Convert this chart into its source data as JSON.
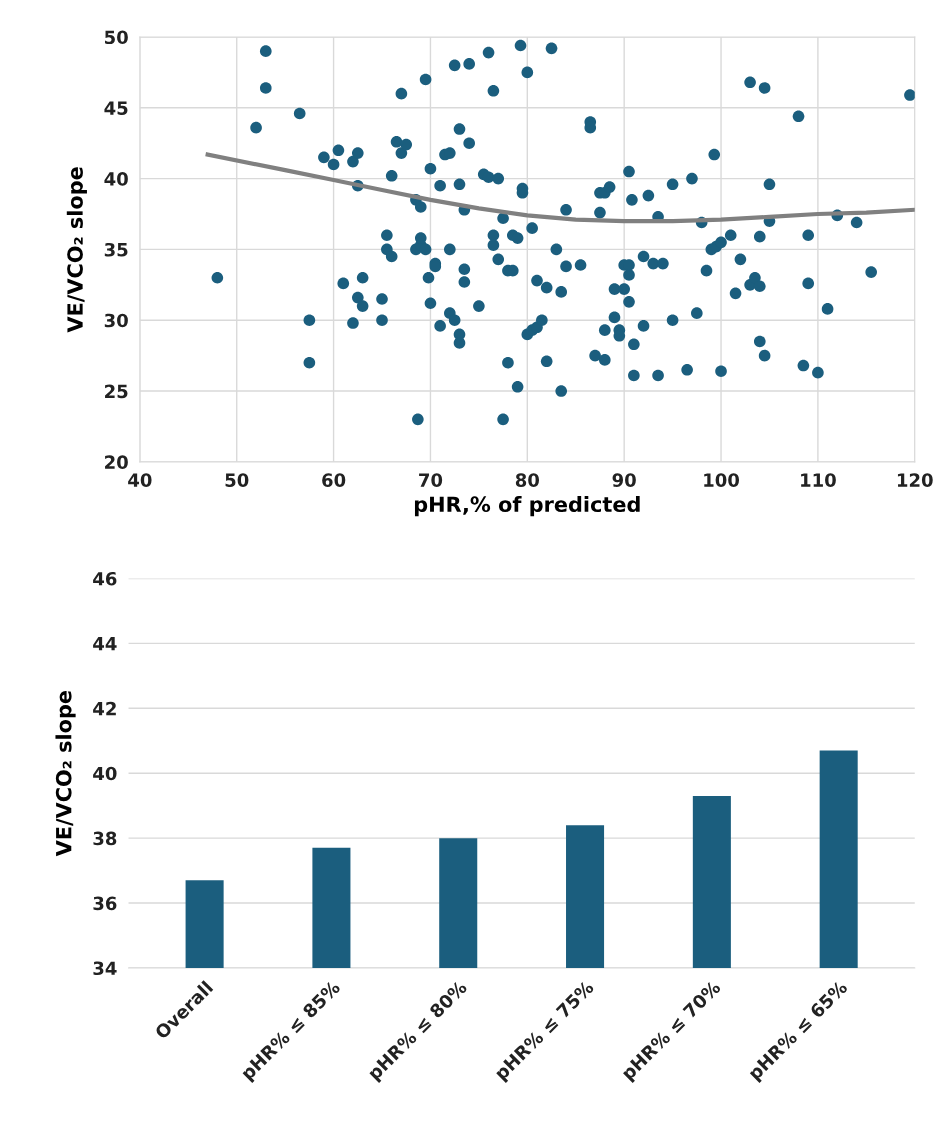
{
  "chart_data": [
    {
      "type": "scatter",
      "xlabel": "pHR,% of predicted",
      "ylabel": "VE/VCO₂ slope",
      "xlim": [
        40,
        120
      ],
      "xticks": [
        40,
        50,
        60,
        70,
        80,
        90,
        100,
        110,
        120
      ],
      "ylim": [
        20,
        50
      ],
      "yticks": [
        20,
        25,
        30,
        35,
        40,
        45,
        50
      ],
      "grid": true,
      "series": [
        {
          "type": "scatter",
          "marker": "circle",
          "color": "#1b5e7e",
          "x": [
            48,
            52,
            53,
            53,
            56.5,
            57.5,
            57.5,
            59,
            60,
            60.5,
            61,
            62,
            62,
            62.5,
            62.5,
            62.5,
            63,
            63,
            65,
            65,
            65.5,
            65.5,
            66,
            66,
            66.5,
            67,
            67.5,
            67,
            68.5,
            68.5,
            69,
            69,
            69,
            68.7,
            69.5,
            69.5,
            69.8,
            70,
            70,
            70.5,
            70.5,
            71,
            71,
            71.5,
            72,
            72,
            72,
            72.5,
            72.5,
            73,
            73,
            73,
            73,
            73.5,
            73.5,
            73.5,
            74,
            74,
            75,
            75.5,
            76,
            76,
            76.5,
            76.5,
            76.5,
            77,
            77,
            77.5,
            77.5,
            78,
            78,
            78.5,
            78.5,
            79,
            79,
            79.3,
            79.5,
            79.5,
            80,
            80,
            80.5,
            80.5,
            81,
            81,
            81.5,
            82,
            82,
            82.5,
            83,
            83.5,
            83.5,
            84,
            84,
            85.5,
            86.5,
            86.5,
            87,
            87.5,
            87.5,
            88,
            88,
            88,
            88.5,
            89,
            89,
            89.5,
            89.5,
            90,
            90,
            90.5,
            90.5,
            90.5,
            90.5,
            90.8,
            91,
            91,
            92,
            92,
            92.5,
            93,
            93.5,
            93.5,
            94,
            95,
            95,
            96.5,
            97,
            97.5,
            98,
            98.5,
            99,
            99.3,
            99.5,
            100,
            100,
            101,
            101.5,
            102,
            103,
            103,
            103.5,
            104,
            104,
            104,
            104.5,
            104.5,
            105,
            105,
            108,
            108.5,
            109,
            109,
            110,
            111,
            112,
            114,
            115.5,
            119.5
          ],
          "values": [
            33,
            43.6,
            49,
            46.4,
            44.6,
            30,
            27,
            41.5,
            41,
            42,
            32.6,
            41.2,
            29.8,
            39.5,
            41.8,
            31.6,
            31,
            33,
            31.5,
            30,
            36,
            35,
            40.2,
            34.5,
            42.6,
            41.8,
            42.4,
            46,
            38.5,
            35,
            38,
            35.3,
            35.8,
            23,
            47,
            35,
            33,
            31.2,
            40.7,
            34,
            33.8,
            39.5,
            29.6,
            41.7,
            41.8,
            30.5,
            35,
            48,
            30,
            43.5,
            39.6,
            29,
            28.4,
            33.6,
            32.7,
            37.8,
            42.5,
            48.1,
            31,
            40.3,
            40.1,
            48.9,
            46.2,
            36,
            35.3,
            34.3,
            40,
            37.2,
            23,
            27,
            33.5,
            36,
            33.5,
            25.3,
            35.8,
            49.4,
            39,
            39.3,
            47.5,
            29,
            36.5,
            29.3,
            32.8,
            29.5,
            30,
            27.1,
            32.3,
            49.2,
            35,
            32,
            25,
            33.8,
            37.8,
            33.9,
            44,
            43.6,
            27.5,
            37.6,
            39,
            29.3,
            27.2,
            39,
            39.4,
            32.2,
            30.2,
            29.3,
            28.9,
            33.9,
            32.2,
            33.9,
            33.2,
            31.3,
            40.5,
            38.5,
            28.3,
            26.1,
            29.6,
            34.5,
            38.8,
            34,
            37.3,
            26.1,
            34,
            30,
            39.6,
            26.5,
            40,
            30.5,
            36.9,
            33.5,
            35,
            41.7,
            35.2,
            26.4,
            35.5,
            36,
            31.9,
            34.3,
            46.8,
            32.5,
            33,
            32.4,
            28.5,
            35.9,
            46.4,
            27.5,
            37,
            39.6,
            44.4,
            26.8,
            32.6,
            36,
            26.3,
            30.8,
            37.4,
            36.9,
            33.4,
            45.9
          ]
        },
        {
          "type": "line",
          "marker": "none",
          "color": "#808080",
          "x": [
            47,
            55,
            60,
            65,
            70,
            75,
            80,
            85,
            90,
            95,
            100,
            105,
            110,
            115,
            120
          ],
          "values": [
            41.7,
            40.6,
            39.9,
            39.2,
            38.5,
            37.9,
            37.4,
            37.1,
            37,
            37,
            37.1,
            37.3,
            37.5,
            37.6,
            37.8
          ]
        }
      ]
    },
    {
      "type": "bar",
      "ylabel": "VE/VCO₂ slope",
      "categories": [
        "Overall",
        "pHR% ≤ 85%",
        "pHR% ≤ 80%",
        "pHR% ≤ 75%",
        "pHR% ≤ 70%",
        "pHR% ≤ 65%"
      ],
      "values": [
        36.7,
        37.7,
        38.0,
        38.4,
        39.3,
        40.7
      ],
      "color": "#1b5e7e",
      "ylim": [
        34,
        46
      ],
      "yticks": [
        34,
        36,
        38,
        40,
        42,
        44,
        46
      ],
      "grid": "y"
    }
  ]
}
